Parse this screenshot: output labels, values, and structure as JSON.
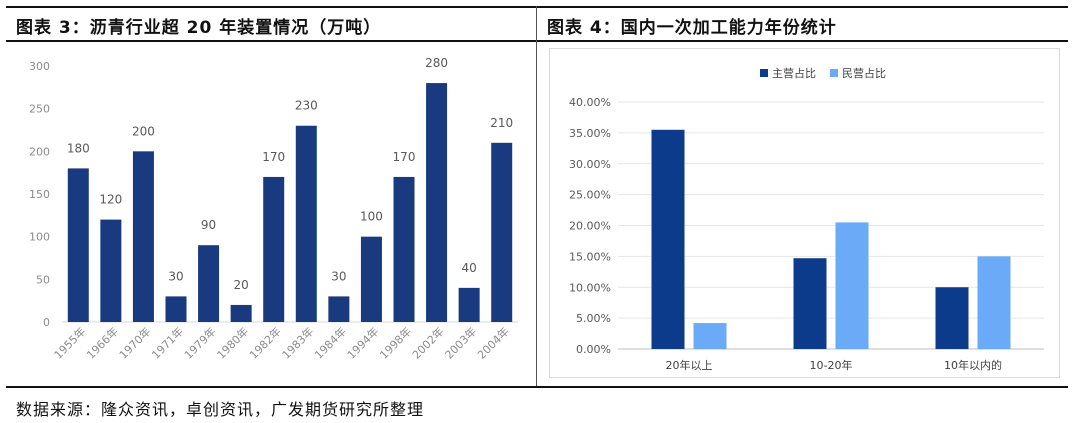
{
  "left_panel": {
    "title": "图表 3：沥青行业超 20 年装置情况（万吨）"
  },
  "right_panel": {
    "title": "图表 4：国内一次加工能力年份统计"
  },
  "source": "数据来源：隆众资讯，卓创资讯，广发期货研究所整理",
  "chart_data": [
    {
      "type": "bar",
      "title": "",
      "xlabel": "",
      "ylabel": "",
      "categories": [
        "1955年",
        "1966年",
        "1970年",
        "1971年",
        "1979年",
        "1980年",
        "1982年",
        "1983年",
        "1984年",
        "1994年",
        "1998年",
        "2002年",
        "2003年",
        "2004年"
      ],
      "values": [
        180,
        120,
        200,
        30,
        90,
        20,
        170,
        230,
        30,
        100,
        170,
        280,
        40,
        210
      ],
      "ylim": [
        0,
        300
      ],
      "yticks": [
        0,
        50,
        100,
        150,
        200,
        250,
        300
      ],
      "data_labels": true,
      "grid": false,
      "color": "#1a3a80"
    },
    {
      "type": "bar",
      "title": "",
      "xlabel": "",
      "ylabel": "",
      "categories": [
        "20年以上",
        "10-20年",
        "10年以内的"
      ],
      "series": [
        {
          "name": "主营占比",
          "values": [
            35.5,
            14.7,
            10.0
          ],
          "color": "#0c3b8c"
        },
        {
          "name": "民营占比",
          "values": [
            4.2,
            20.5,
            15.0
          ],
          "color": "#6aaaf7"
        }
      ],
      "ylim": [
        0,
        40
      ],
      "yticks": [
        "0.00%",
        "5.00%",
        "10.00%",
        "15.00%",
        "20.00%",
        "25.00%",
        "30.00%",
        "35.00%",
        "40.00%"
      ],
      "legend": "top-center",
      "grid": true
    }
  ]
}
